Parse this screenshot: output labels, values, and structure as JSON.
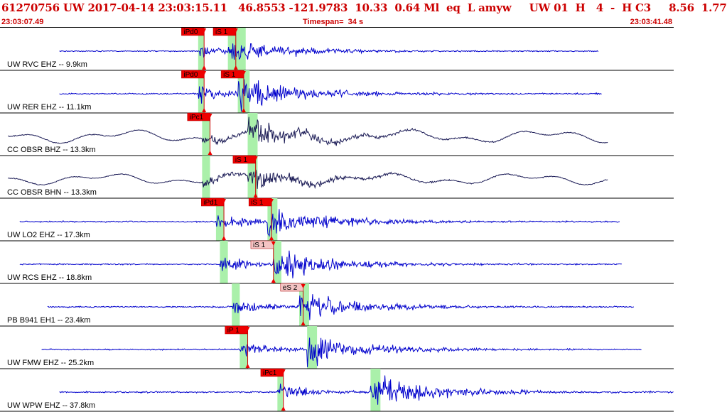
{
  "header": {
    "title": "61270756 UW 2017-04-14 23:03:15.11   46.8553 -121.9783  10.33  0.64 Ml  eq  L amyw     UW 01  H   4  -  H C3     8.56  1.77",
    "time_start": "23:03:07.49",
    "timespan": "Timespan=  34 s",
    "time_end": "23:03:41.48"
  },
  "colors": {
    "title": "#cc0000",
    "trace_ehz": "#0000cc",
    "trace_bh": "#1a1a55",
    "pick_red": "#ee0000",
    "pick_pink": "#f4c4c4",
    "window_green": "#aaf0aa",
    "axis": "#000000"
  },
  "chart_data": {
    "type": "line",
    "x_unit": "s",
    "xlim": [
      0,
      34
    ],
    "start_time": "23:03:07.49",
    "end_time": "23:03:41.48",
    "series": [
      {
        "name": "UW RVC EHZ -- 9.9km",
        "color": "#0000cc",
        "amp": 0.35,
        "sig_start": 3,
        "sig_end": 30.2,
        "style": "hf",
        "windows": [
          [
            10.0,
            10.3
          ],
          [
            11.5,
            12.4
          ]
        ],
        "picks": [
          {
            "label": "iPd0",
            "t": 10.3,
            "style": "red"
          },
          {
            "label": "iS 1",
            "t": 11.9,
            "style": "red"
          }
        ]
      },
      {
        "name": "UW RER EHZ -- 11.1km",
        "color": "#0000cc",
        "amp": 0.45,
        "sig_start": 3,
        "sig_end": 30.4,
        "style": "hf",
        "windows": [
          [
            10.0,
            10.3
          ],
          [
            12.0,
            12.6
          ]
        ],
        "picks": [
          {
            "label": "iPd0",
            "t": 10.3,
            "style": "red"
          },
          {
            "label": "iS 1",
            "t": 12.3,
            "style": "red"
          }
        ]
      },
      {
        "name": "CC OBSR BHZ -- 13.3km",
        "color": "#1a1a55",
        "amp": 0.7,
        "sig_start": 0.4,
        "sig_end": 30.7,
        "style": "lf",
        "windows": [
          [
            10.2,
            10.6
          ],
          [
            12.5,
            13.0
          ]
        ],
        "picks": [
          {
            "label": "iPc1",
            "t": 10.6,
            "style": "red"
          }
        ]
      },
      {
        "name": "CC OBSR BHN -- 13.3km",
        "color": "#1a1a55",
        "amp": 0.6,
        "sig_start": 0.4,
        "sig_end": 30.7,
        "style": "lf",
        "windows": [
          [
            10.2,
            10.6
          ],
          [
            12.5,
            13.0
          ]
        ],
        "picks": [
          {
            "label": "iS 1",
            "t": 12.9,
            "style": "red"
          }
        ]
      },
      {
        "name": "UW LO2 EHZ -- 17.3km",
        "color": "#0000cc",
        "amp": 0.45,
        "sig_start": 1,
        "sig_end": 31.3,
        "style": "hf",
        "windows": [
          [
            10.9,
            11.3
          ],
          [
            13.5,
            14.0
          ]
        ],
        "picks": [
          {
            "label": "iPd1",
            "t": 11.3,
            "style": "red"
          },
          {
            "label": "iS 1",
            "t": 13.7,
            "style": "red"
          }
        ]
      },
      {
        "name": "UW RCS EHZ -- 18.8km",
        "color": "#0000cc",
        "amp": 0.45,
        "sig_start": 1,
        "sig_end": 31.4,
        "style": "hf",
        "windows": [
          [
            11.1,
            11.5
          ],
          [
            13.8,
            14.2
          ]
        ],
        "picks": [
          {
            "label": "iS 1",
            "t": 13.8,
            "style": "pink"
          }
        ]
      },
      {
        "name": "PB B941 EH1 -- 23.4km",
        "color": "#0000cc",
        "amp": 0.45,
        "sig_start": 2.4,
        "sig_end": 32.0,
        "style": "hf",
        "windows": [
          [
            11.7,
            12.1
          ],
          [
            15.1,
            15.6
          ]
        ],
        "picks": [
          {
            "label": "eS 2",
            "t": 15.3,
            "style": "pink"
          }
        ]
      },
      {
        "name": "UW FMW EHZ -- 25.2km",
        "color": "#0000cc",
        "amp": 0.45,
        "sig_start": 2.1,
        "sig_end": 32.4,
        "style": "hf",
        "windows": [
          [
            12.1,
            12.5
          ],
          [
            15.5,
            16.0
          ]
        ],
        "picks": [
          {
            "label": "iP 1",
            "t": 12.5,
            "style": "red"
          }
        ]
      },
      {
        "name": "UW WPW EHZ -- 37.8km",
        "color": "#0000cc",
        "amp": 0.5,
        "sig_start": 3,
        "sig_end": 34,
        "style": "hf",
        "windows": [
          [
            14.0,
            14.3
          ],
          [
            18.7,
            19.2
          ]
        ],
        "picks": [
          {
            "label": "iPc1",
            "t": 14.3,
            "style": "red"
          }
        ]
      }
    ]
  }
}
